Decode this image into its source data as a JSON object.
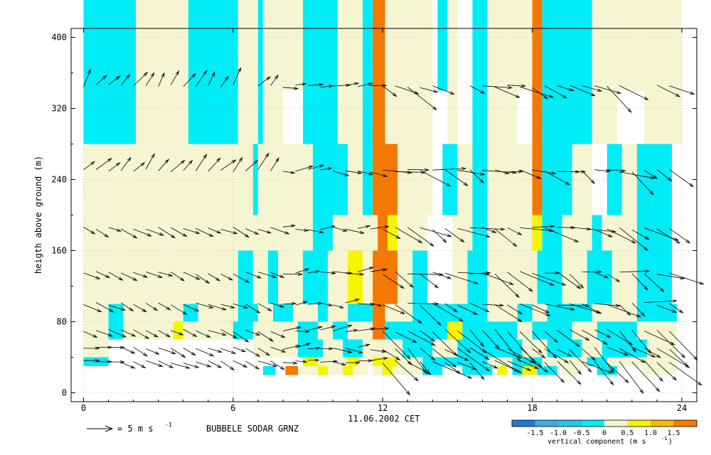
{
  "chart_data": {
    "type": "heatmap",
    "title": "BUBBELE SODAR GRNZ",
    "xlabel": "11.06.2002 CET",
    "ylabel": "heigth above ground (m)",
    "xlim": [
      -0.5,
      24.6
    ],
    "ylim": [
      -10,
      410
    ],
    "x_ticks": [
      "0",
      "6",
      "12",
      "18",
      "24"
    ],
    "y_ticks": [
      "0",
      "80",
      "160",
      "240",
      "320",
      "400"
    ],
    "grid": "dotted",
    "vector_scale_label": "= 5 m s",
    "vector_scale_exp": "-1",
    "vector_scale_ms": 5,
    "colorbar": {
      "label": "vertical component  (m s",
      "label_exp": "-1",
      "label_close": ")",
      "ticks": [
        "-1.5",
        "-1.0",
        "-0.5",
        "0",
        "0.5",
        "1.0",
        "1.5"
      ],
      "bounds": [
        -2.0,
        -1.5,
        -1.0,
        -0.5,
        0,
        0.5,
        1.0,
        1.5,
        2.0
      ],
      "colors": [
        "#1f78d6",
        "#3ea8e4",
        "#20c8ee",
        "#00ecf6",
        "#f5f5d2",
        "#f5f500",
        "#f5b800",
        "#f57800"
      ]
    },
    "wind_barb_heights_m": [
      35,
      50,
      70,
      100,
      135,
      185,
      250,
      345
    ]
  }
}
